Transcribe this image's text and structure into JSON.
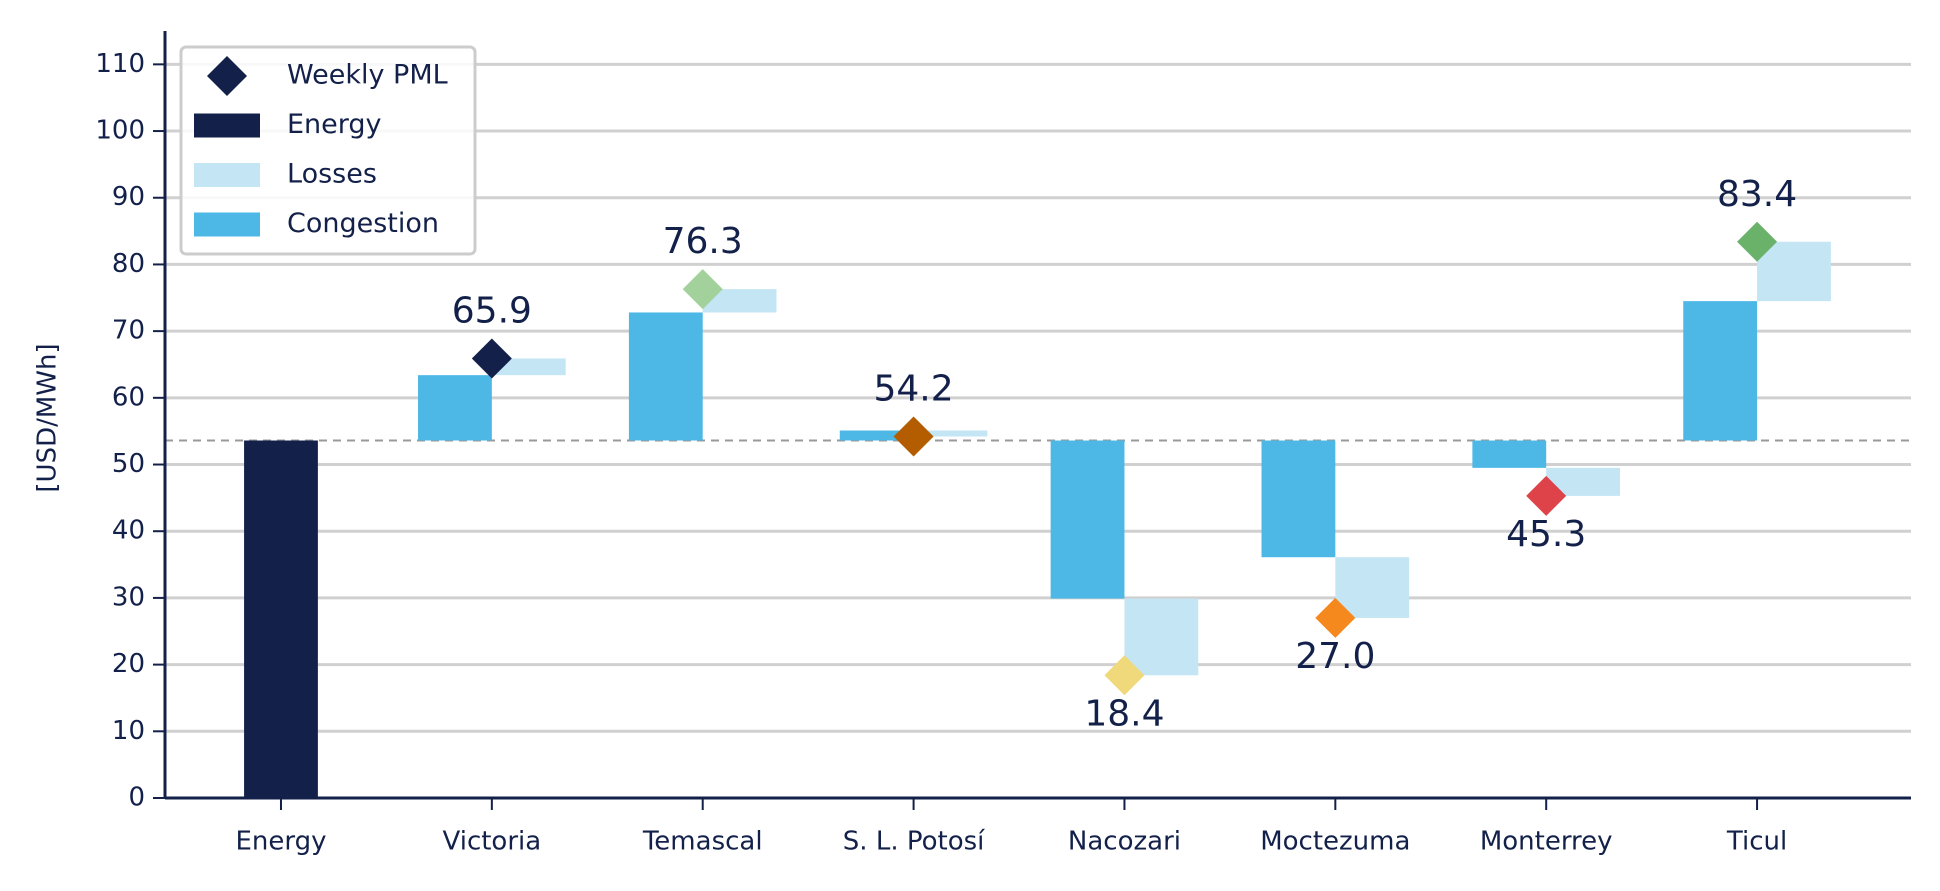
{
  "chart_data": {
    "type": "waterfall",
    "ylabel": "[USD/MWh]",
    "categories": [
      "Energy",
      "Victoria",
      "Temascal",
      "S. L. Potosí",
      "Nacozari",
      "Moctezuma",
      "Monterrey",
      "Ticul"
    ],
    "ylim": [
      0,
      115
    ],
    "yticks": [
      0,
      10,
      20,
      30,
      40,
      50,
      60,
      70,
      80,
      90,
      100,
      110
    ],
    "grid": true,
    "series": [
      {
        "name": "Energy",
        "color": "#13214a",
        "values": [
          53.6,
          null,
          null,
          null,
          null,
          null,
          null,
          null
        ]
      },
      {
        "name": "Losses",
        "color": "#c3e5f4",
        "values": [
          null,
          2.5,
          3.5,
          -0.9,
          -11.5,
          -9.1,
          -4.2,
          8.9
        ]
      },
      {
        "name": "Congestion",
        "color": "#4db8e5",
        "values": [
          null,
          9.8,
          19.2,
          1.5,
          -23.7,
          -17.5,
          -4.1,
          20.9
        ]
      }
    ],
    "pml": {
      "name": "Weekly PML",
      "color": "#13214a",
      "colors": [
        null,
        "#13214a",
        "#a3d19c",
        "#b35c00",
        "#f0d97a",
        "#f5891e",
        "#de4349",
        "#6ab26a"
      ],
      "values": [
        null,
        65.9,
        76.3,
        54.2,
        18.4,
        27.0,
        45.3,
        83.4
      ],
      "value_labels": [
        null,
        "65.9",
        "76.3",
        "54.2",
        "18.4",
        "27.0",
        "45.3",
        "83.4"
      ]
    },
    "legend": "upper left"
  }
}
